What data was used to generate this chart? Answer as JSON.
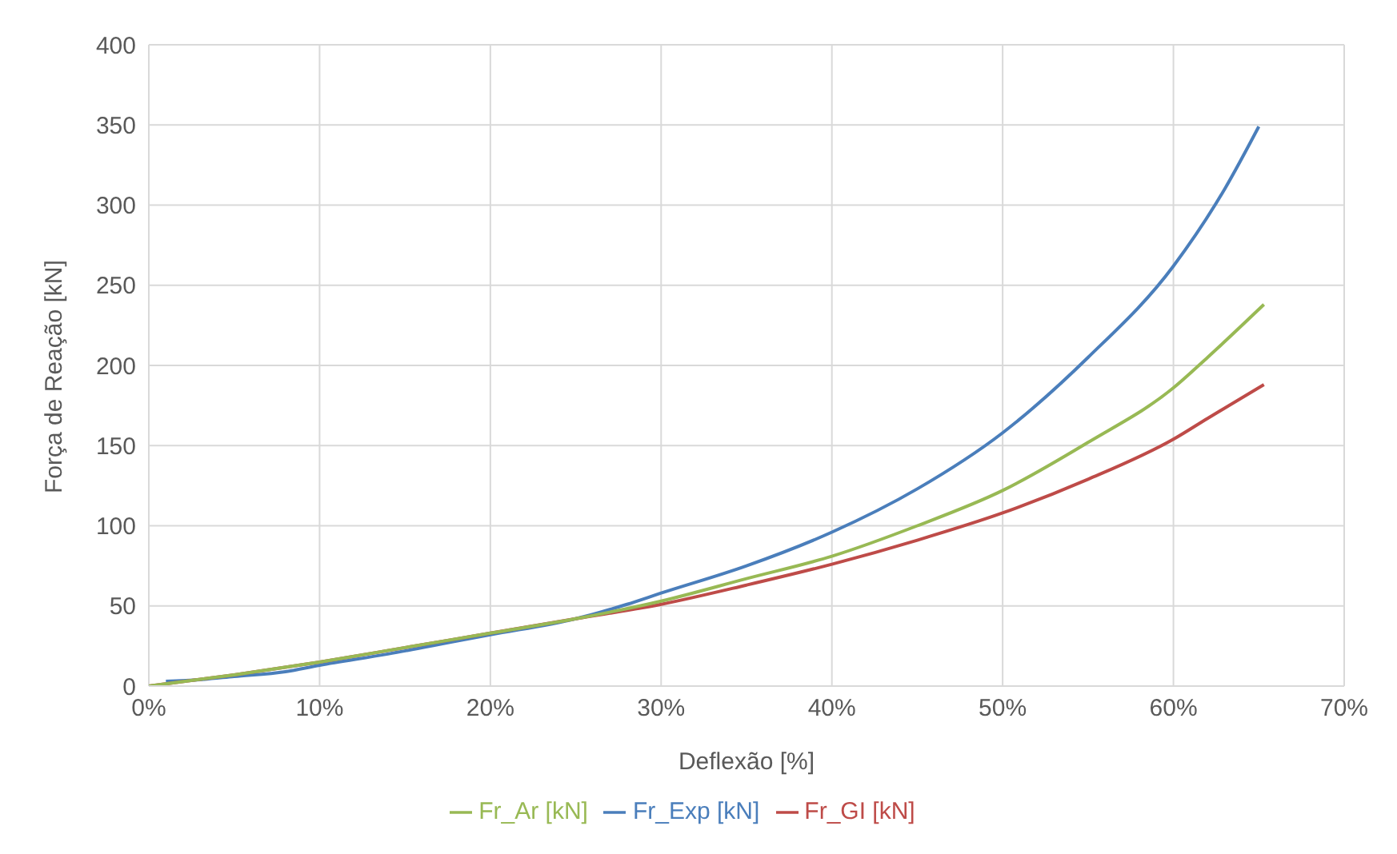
{
  "chart_data": {
    "type": "line",
    "xlabel": "Deflexão [%]",
    "ylabel": "Força de Reação [kN]",
    "xlim": [
      0,
      70
    ],
    "xticks": [
      {
        "value": 0,
        "label": "0%"
      },
      {
        "value": 10,
        "label": "10%"
      },
      {
        "value": 20,
        "label": "20%"
      },
      {
        "value": 30,
        "label": "30%"
      },
      {
        "value": 40,
        "label": "40%"
      },
      {
        "value": 50,
        "label": "50%"
      },
      {
        "value": 60,
        "label": "60%"
      },
      {
        "value": 70,
        "label": "70%"
      }
    ],
    "ylim": [
      0,
      400
    ],
    "yticks": [
      0,
      50,
      100,
      150,
      200,
      250,
      300,
      350,
      400
    ],
    "grid": true,
    "legend": "bottom",
    "marker": "none",
    "line_style": "solid",
    "series": [
      {
        "name": "Fr_Exp [kN]",
        "color": "#4a7ebb",
        "x": [
          1,
          3,
          5,
          8,
          10,
          14,
          18,
          20,
          25,
          28,
          30,
          35,
          40,
          45,
          50,
          55,
          60,
          63,
          65
        ],
        "values": [
          3,
          4,
          6,
          9,
          13,
          20,
          28,
          32,
          42,
          51,
          58,
          75,
          96,
          123,
          158,
          205,
          262,
          310,
          349
        ]
      },
      {
        "name": "Fr_GI [kN]",
        "color": "#be4b48",
        "x": [
          0,
          5,
          10,
          15,
          20,
          25,
          30,
          35,
          40,
          45,
          50,
          55,
          60,
          62,
          65.3
        ],
        "values": [
          0,
          7,
          15,
          24,
          33,
          42,
          51,
          63,
          76,
          91,
          108,
          129,
          154,
          167,
          188
        ]
      },
      {
        "name": "Fr_Ar [kN]",
        "color": "#98b954",
        "x": [
          0,
          5,
          10,
          15,
          20,
          25,
          30,
          35,
          40,
          45,
          50,
          55,
          60,
          62,
          65.3
        ],
        "values": [
          0,
          7,
          15,
          24,
          33,
          42,
          53,
          67,
          81,
          100,
          122,
          152,
          186,
          205,
          238
        ]
      }
    ]
  }
}
